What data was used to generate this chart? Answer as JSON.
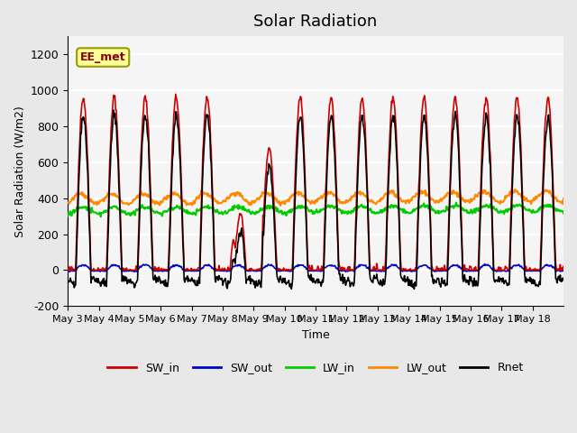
{
  "title": "Solar Radiation",
  "ylabel": "Solar Radiation (W/m2)",
  "xlabel": "Time",
  "ylim": [
    -200,
    1300
  ],
  "yticks": [
    -200,
    0,
    200,
    400,
    600,
    800,
    1000,
    1200
  ],
  "n_days": 16,
  "annotation_text": "EE_met",
  "annotation_color": "#8B0000",
  "annotation_bg": "#FFFF99",
  "bg_color": "#E8E8E8",
  "plot_bg": "#F5F5F5",
  "grid_color": "#FFFFFF",
  "colors": {
    "SW_in": "#CC0000",
    "SW_out": "#0000CC",
    "LW_in": "#00CC00",
    "LW_out": "#FF8800",
    "Rnet": "#000000"
  },
  "tick_labels": [
    "May 3",
    "May 4",
    "May 5",
    "May 6",
    "May 7",
    "May 8",
    "May 9",
    "May 10",
    "May 11",
    "May 12",
    "May 13",
    "May 14",
    "May 15",
    "May 16",
    "May 17",
    "May 18"
  ],
  "points_per_day": 48
}
